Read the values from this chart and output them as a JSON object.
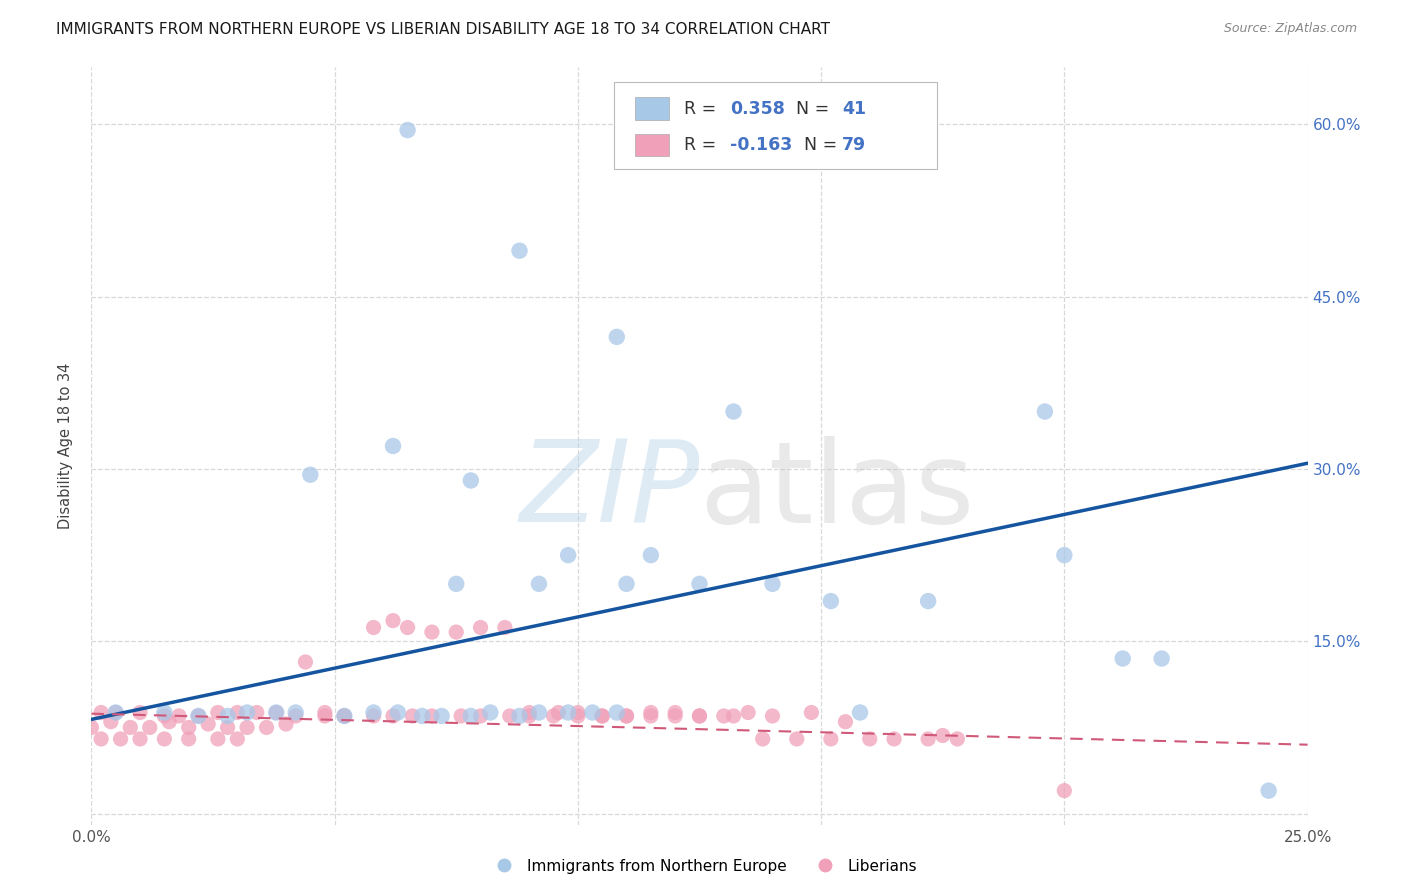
{
  "title": "IMMIGRANTS FROM NORTHERN EUROPE VS LIBERIAN DISABILITY AGE 18 TO 34 CORRELATION CHART",
  "source": "Source: ZipAtlas.com",
  "ylabel": "Disability Age 18 to 34",
  "xlim": [
    0.0,
    0.25
  ],
  "ylim": [
    -0.01,
    0.65
  ],
  "xticks": [
    0.0,
    0.05,
    0.1,
    0.15,
    0.2,
    0.25
  ],
  "yticks": [
    0.0,
    0.15,
    0.3,
    0.45,
    0.6
  ],
  "xtick_labels": [
    "0.0%",
    "",
    "",
    "",
    "",
    "25.0%"
  ],
  "ytick_labels_right": [
    "",
    "15.0%",
    "30.0%",
    "45.0%",
    "60.0%"
  ],
  "watermark_zip": "ZIP",
  "watermark_atlas": "atlas",
  "legend_label1": "Immigrants from Northern Europe",
  "legend_label2": "Liberians",
  "R1": "0.358",
  "N1": "41",
  "R2": "-0.163",
  "N2": "79",
  "blue_dot_color": "#a8c8e8",
  "blue_line_color": "#1555a0",
  "pink_dot_color": "#f0a0b8",
  "pink_line_color": "#d05878",
  "grid_color": "#d8d8d8",
  "bg_color": "#ffffff",
  "title_color": "#1a1a1a",
  "source_color": "#888888",
  "tick_color_y": "#4472c4",
  "tick_color_x": "#555555",
  "blue_x": [
    0.065,
    0.088,
    0.108,
    0.132,
    0.045,
    0.062,
    0.078,
    0.098,
    0.115,
    0.14,
    0.152,
    0.172,
    0.196,
    0.2,
    0.212,
    0.005,
    0.015,
    0.022,
    0.028,
    0.032,
    0.038,
    0.042,
    0.052,
    0.058,
    0.063,
    0.068,
    0.072,
    0.078,
    0.082,
    0.088,
    0.092,
    0.098,
    0.103,
    0.108,
    0.158,
    0.22,
    0.242,
    0.075,
    0.092,
    0.11,
    0.125
  ],
  "blue_y": [
    0.595,
    0.49,
    0.415,
    0.35,
    0.295,
    0.32,
    0.29,
    0.225,
    0.225,
    0.2,
    0.185,
    0.185,
    0.35,
    0.225,
    0.135,
    0.088,
    0.088,
    0.085,
    0.085,
    0.088,
    0.088,
    0.088,
    0.085,
    0.088,
    0.088,
    0.085,
    0.085,
    0.085,
    0.088,
    0.085,
    0.088,
    0.088,
    0.088,
    0.088,
    0.088,
    0.135,
    0.02,
    0.2,
    0.2,
    0.2,
    0.2
  ],
  "pink_x": [
    0.002,
    0.005,
    0.01,
    0.015,
    0.018,
    0.022,
    0.026,
    0.03,
    0.034,
    0.038,
    0.042,
    0.048,
    0.052,
    0.058,
    0.062,
    0.065,
    0.07,
    0.075,
    0.08,
    0.085,
    0.09,
    0.096,
    0.1,
    0.105,
    0.11,
    0.115,
    0.12,
    0.125,
    0.13,
    0.135,
    0.14,
    0.148,
    0.155,
    0.0,
    0.004,
    0.008,
    0.012,
    0.016,
    0.02,
    0.024,
    0.028,
    0.032,
    0.036,
    0.04,
    0.044,
    0.048,
    0.052,
    0.058,
    0.062,
    0.066,
    0.07,
    0.076,
    0.08,
    0.086,
    0.09,
    0.095,
    0.1,
    0.105,
    0.11,
    0.115,
    0.12,
    0.125,
    0.132,
    0.138,
    0.145,
    0.152,
    0.16,
    0.165,
    0.172,
    0.002,
    0.006,
    0.01,
    0.015,
    0.02,
    0.026,
    0.03,
    0.175,
    0.178,
    0.2
  ],
  "pink_y": [
    0.088,
    0.088,
    0.088,
    0.085,
    0.085,
    0.085,
    0.088,
    0.088,
    0.088,
    0.088,
    0.085,
    0.088,
    0.085,
    0.162,
    0.168,
    0.162,
    0.158,
    0.158,
    0.162,
    0.162,
    0.088,
    0.088,
    0.088,
    0.085,
    0.085,
    0.088,
    0.088,
    0.085,
    0.085,
    0.088,
    0.085,
    0.088,
    0.08,
    0.075,
    0.08,
    0.075,
    0.075,
    0.08,
    0.075,
    0.078,
    0.075,
    0.075,
    0.075,
    0.078,
    0.132,
    0.085,
    0.085,
    0.085,
    0.085,
    0.085,
    0.085,
    0.085,
    0.085,
    0.085,
    0.085,
    0.085,
    0.085,
    0.085,
    0.085,
    0.085,
    0.085,
    0.085,
    0.085,
    0.065,
    0.065,
    0.065,
    0.065,
    0.065,
    0.065,
    0.065,
    0.065,
    0.065,
    0.065,
    0.065,
    0.065,
    0.065,
    0.068,
    0.065,
    0.02
  ],
  "blue_trend_x": [
    0.0,
    0.25
  ],
  "blue_trend_y": [
    0.082,
    0.305
  ],
  "pink_trend_x": [
    0.0,
    0.25
  ],
  "pink_trend_y": [
    0.087,
    0.06
  ]
}
